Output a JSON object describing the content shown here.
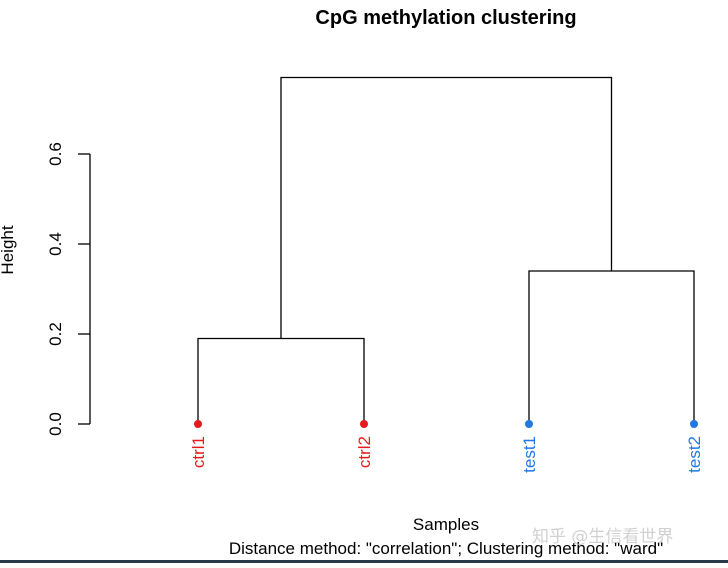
{
  "chart_data": {
    "type": "dendrogram",
    "title": "CpG methylation clustering",
    "ylabel": "Height",
    "xlabel": "Samples",
    "subtitle": "Distance method: \"correlation\"; Clustering method: \"ward\"",
    "ylim": [
      0,
      0.6
    ],
    "yticks": [
      0.0,
      0.2,
      0.4,
      0.6
    ],
    "ytick_labels": [
      "0.0",
      "0.2",
      "0.4",
      "0.6"
    ],
    "leaves": [
      {
        "label": "ctrl1",
        "color": "#e41a1c"
      },
      {
        "label": "ctrl2",
        "color": "#e41a1c"
      },
      {
        "label": "test1",
        "color": "#1f78e4"
      },
      {
        "label": "test2",
        "color": "#1f78e4"
      }
    ],
    "merges": [
      {
        "left": "ctrl1",
        "right": "ctrl2",
        "height": 0.19
      },
      {
        "left": "test1",
        "right": "test2",
        "height": 0.34
      },
      {
        "left": "ctrl-cluster",
        "right": "test-cluster",
        "height": 0.77
      }
    ]
  },
  "watermark": "知乎 @生信看世界",
  "colors": {
    "line": "#000000",
    "ctrl": "#e41a1c",
    "test": "#1f78e4"
  }
}
